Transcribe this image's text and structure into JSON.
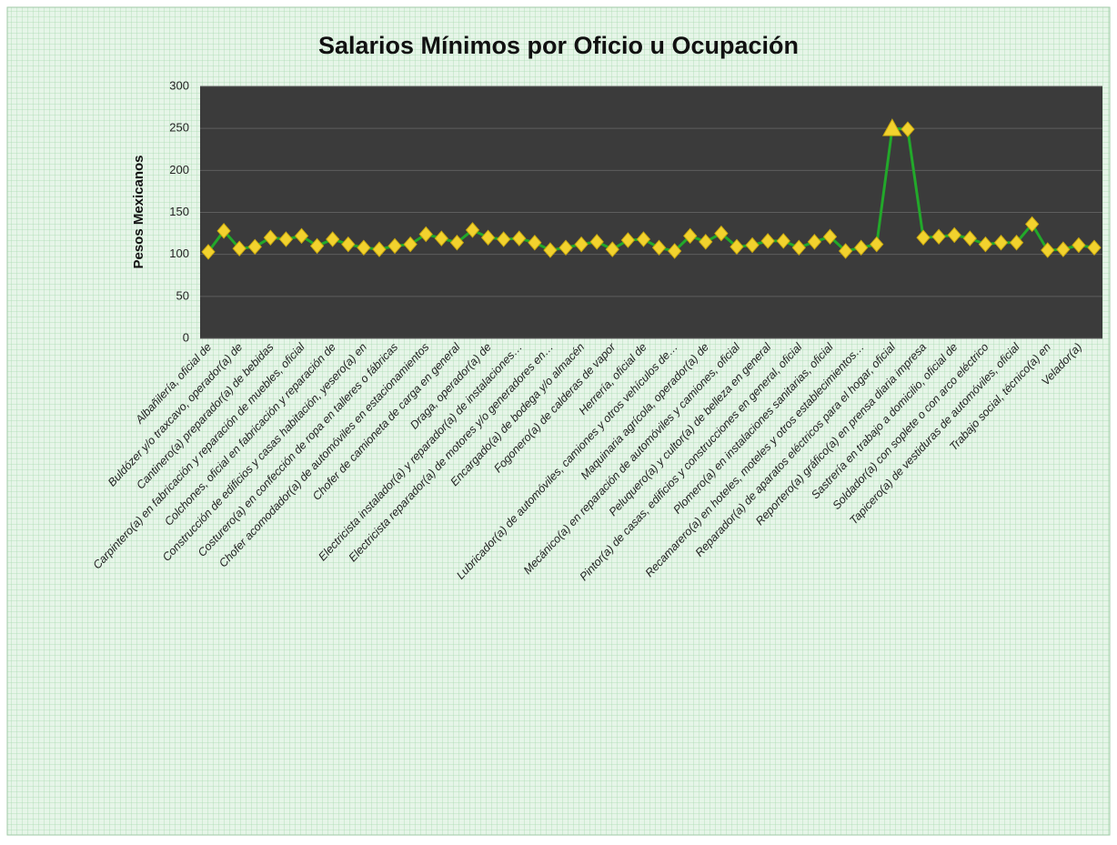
{
  "chart_data": {
    "type": "line",
    "title": "Salarios Mínimos por Oficio u Ocupación",
    "y_label": "Pesos Mexicanos",
    "categories": [
      "Albañilería, oficial de",
      null,
      "Buldózer y/o traxcavo, operador(a) de",
      null,
      "Cantinero(a) preparador(a) de bebidas",
      null,
      "Carpintero(a) en fabricación y reparación de muebles, oficial",
      null,
      "Colchones, oficial en fabricación y reparación de",
      null,
      "Construcción de edificios y casas habitación, yesero(a) en",
      null,
      "Costurero(a) en confección de ropa en talleres o fábricas",
      null,
      "Chofer acomodador(a) de automóviles en estacionamientos",
      null,
      "Chofer de camioneta de carga en general",
      null,
      "Draga, operador(a) de",
      null,
      "Electricista instalador(a) y reparador(a) de instalaciones…",
      null,
      "Electricista reparador(a) de motores y/o generadores en…",
      null,
      "Encargado(a) de bodega y/o almacén",
      null,
      "Fogonero(a) de calderas de vapor",
      null,
      "Herrería, oficial de",
      null,
      "Lubricador(a) de automóviles, camiones y otros vehículos de…",
      null,
      "Maquinaria agrícola, operador(a) de",
      null,
      "Mecánico(a) en reparación de automóviles y camiones, oficial",
      null,
      "Peluquero(a) y cultor(a) de belleza en general",
      null,
      "Pintor(a) de casas, edificios y construcciones en general, oficial",
      null,
      "Plomero(a) en instalaciones sanitarias, oficial",
      null,
      "Recamarero(a) en hoteles, moteles y otros establecimientos…",
      null,
      "Reparador(a) de aparatos eléctricos para el hogar, oficial",
      null,
      "Reportero(a) gráfico(a) en prensa diaria impresa",
      null,
      "Sastrería en trabajo a domicilio, oficial de",
      null,
      "Soldador(a) con soplete o con arco eléctrico",
      null,
      "Tapicero(a) de vestiduras de automóviles, oficial",
      null,
      "Trabajo social, técnico(a) en",
      null,
      "Velador(a)",
      null
    ],
    "values": [
      103,
      128,
      107,
      109,
      120,
      118,
      122,
      110,
      118,
      112,
      108,
      106,
      110,
      112,
      124,
      119,
      114,
      129,
      120,
      118,
      119,
      114,
      105,
      108,
      112,
      115,
      106,
      117,
      118,
      108,
      104,
      122,
      115,
      125,
      109,
      111,
      116,
      116,
      108,
      115,
      121,
      104,
      108,
      112,
      250,
      249,
      120,
      121,
      123,
      119,
      112,
      114,
      114,
      136,
      105,
      106,
      111,
      108
    ],
    "color": "#22a82a",
    "marker_color": "#f2d22e",
    "ylim": [
      0,
      300
    ],
    "yticks": [
      0,
      50,
      100,
      150,
      200,
      250,
      300
    ],
    "grid": true
  }
}
